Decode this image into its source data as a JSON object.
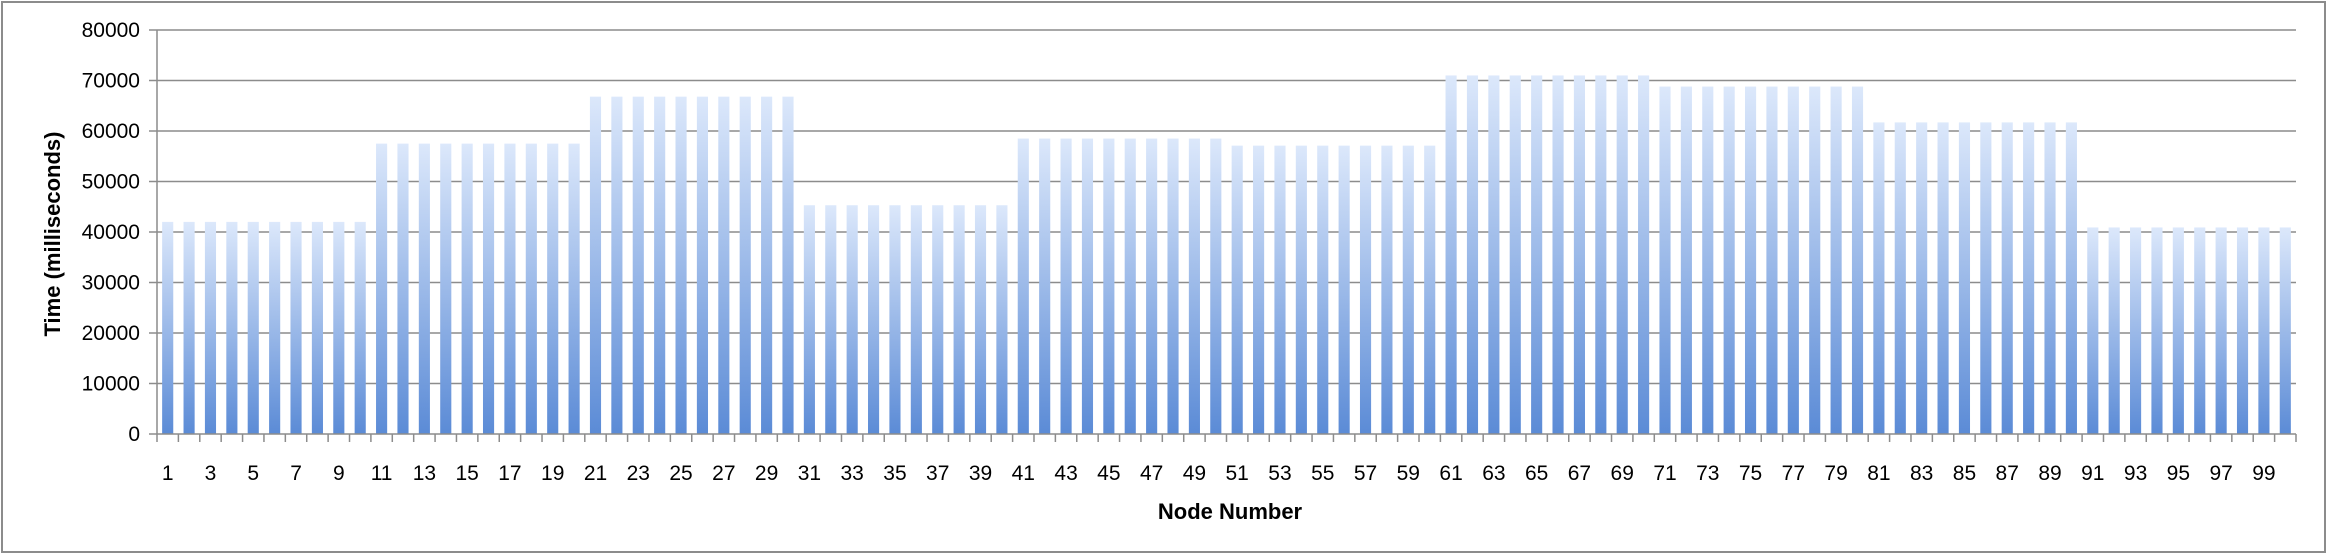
{
  "chart_data": {
    "type": "bar",
    "title": "",
    "xlabel": "Node Number",
    "ylabel": "Time (milliseconds)",
    "ylim": [
      0,
      80000
    ],
    "yticks": [
      0,
      10000,
      20000,
      30000,
      40000,
      50000,
      60000,
      70000,
      80000
    ],
    "xtick_labels": [
      "1",
      "3",
      "5",
      "7",
      "9",
      "11",
      "13",
      "15",
      "17",
      "19",
      "21",
      "23",
      "25",
      "27",
      "29",
      "31",
      "33",
      "35",
      "37",
      "39",
      "41",
      "43",
      "45",
      "47",
      "49",
      "51",
      "53",
      "55",
      "57",
      "59",
      "61",
      "63",
      "65",
      "67",
      "69",
      "71",
      "73",
      "75",
      "77",
      "79",
      "81",
      "83",
      "85",
      "87",
      "89",
      "91",
      "93",
      "95",
      "97",
      "99"
    ],
    "grid": true,
    "legend": "none",
    "colors": {
      "bar_top": "#dce8fb",
      "bar_bottom": "#5b8bd6",
      "grid": "#8c8c8c"
    },
    "categories": [
      1,
      2,
      3,
      4,
      5,
      6,
      7,
      8,
      9,
      10,
      11,
      12,
      13,
      14,
      15,
      16,
      17,
      18,
      19,
      20,
      21,
      22,
      23,
      24,
      25,
      26,
      27,
      28,
      29,
      30,
      31,
      32,
      33,
      34,
      35,
      36,
      37,
      38,
      39,
      40,
      41,
      42,
      43,
      44,
      45,
      46,
      47,
      48,
      49,
      50,
      51,
      52,
      53,
      54,
      55,
      56,
      57,
      58,
      59,
      60,
      61,
      62,
      63,
      64,
      65,
      66,
      67,
      68,
      69,
      70,
      71,
      72,
      73,
      74,
      75,
      76,
      77,
      78,
      79,
      80,
      81,
      82,
      83,
      84,
      85,
      86,
      87,
      88,
      89,
      90,
      91,
      92,
      93,
      94,
      95,
      96,
      97,
      98,
      99,
      100
    ],
    "values": [
      42000,
      42000,
      42000,
      42000,
      42000,
      42000,
      42000,
      42000,
      42000,
      42000,
      57500,
      57500,
      57500,
      57500,
      57500,
      57500,
      57500,
      57500,
      57500,
      57500,
      66800,
      66800,
      66800,
      66800,
      66800,
      66800,
      66800,
      66800,
      66800,
      66800,
      45300,
      45300,
      45300,
      45300,
      45300,
      45300,
      45300,
      45300,
      45300,
      45300,
      58500,
      58500,
      58500,
      58500,
      58500,
      58500,
      58500,
      58500,
      58500,
      58500,
      57100,
      57100,
      57100,
      57100,
      57100,
      57100,
      57100,
      57100,
      57100,
      57100,
      71000,
      71000,
      71000,
      71000,
      71000,
      71000,
      71000,
      71000,
      71000,
      71000,
      68800,
      68800,
      68800,
      68800,
      68800,
      68800,
      68800,
      68800,
      68800,
      68800,
      61700,
      61700,
      61700,
      61700,
      61700,
      61700,
      61700,
      61700,
      61700,
      61700,
      40900,
      40900,
      40900,
      40900,
      40900,
      40900,
      40900,
      40900,
      40900,
      40900
    ]
  }
}
